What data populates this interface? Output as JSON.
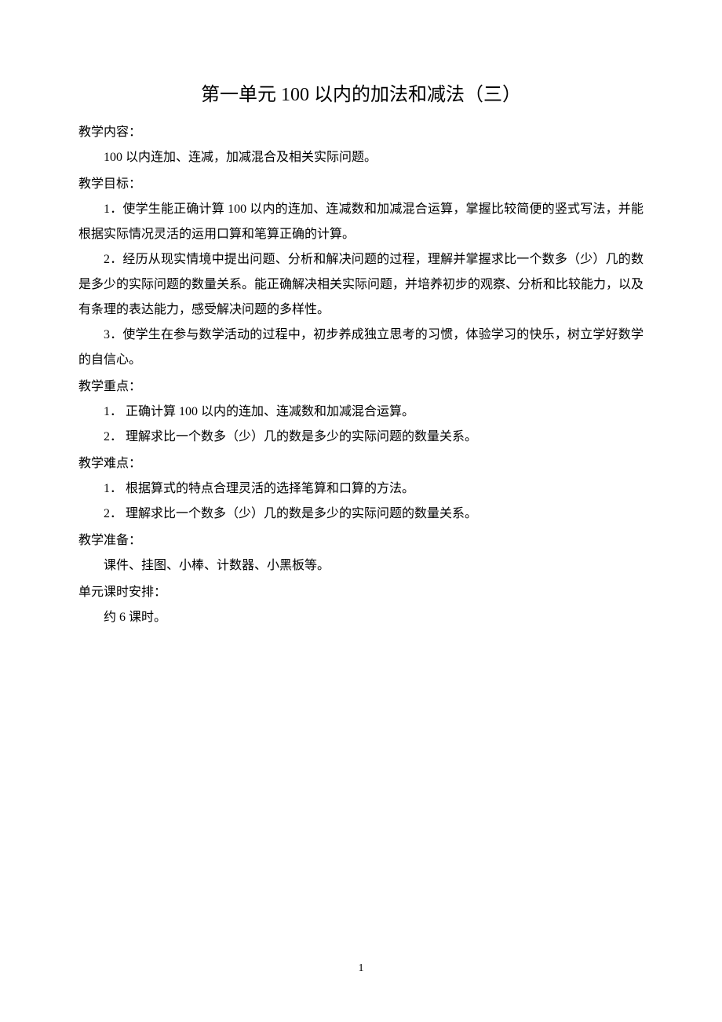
{
  "title": "第一单元  100 以内的加法和减法（三）",
  "sections": {
    "content": {
      "label": "教学内容：",
      "body": "100 以内连加、连减，加减混合及相关实际问题。"
    },
    "goals": {
      "label": "教学目标：",
      "items": [
        "1．使学生能正确计算 100 以内的连加、连减数和加减混合运算，掌握比较简便的竖式写法，并能根据实际情况灵活的运用口算和笔算正确的计算。",
        "2．经历从现实情境中提出问题、分析和解决问题的过程，理解并掌握求比一个数多（少）几的数是多少的实际问题的数量关系。能正确解决相关实际问题，并培养初步的观察、分析和比较能力，以及有条理的表达能力，感受解决问题的多样性。",
        "3．使学生在参与数学活动的过程中，初步养成独立思考的习惯，体验学习的快乐，树立学好数学的自信心。"
      ]
    },
    "keyPoints": {
      "label": "教学重点：",
      "items": [
        "1． 正确计算 100 以内的连加、连减数和加减混合运算。",
        "2． 理解求比一个数多（少）几的数是多少的实际问题的数量关系。"
      ]
    },
    "difficulties": {
      "label": "教学难点：",
      "items": [
        "1． 根据算式的特点合理灵活的选择笔算和口算的方法。",
        "2． 理解求比一个数多（少）几的数是多少的实际问题的数量关系。"
      ]
    },
    "preparation": {
      "label": "教学准备：",
      "body": "课件、挂图、小棒、计数器、小黑板等。"
    },
    "schedule": {
      "label": "单元课时安排：",
      "body": "约 6 课时。"
    }
  },
  "pageNumber": "1",
  "styles": {
    "pageWidth": 920,
    "pageHeight": 1302,
    "backgroundColor": "#ffffff",
    "textColor": "#000000",
    "titleFontSize": 24,
    "bodyFontSize": 16,
    "lineHeight": 2.0,
    "fontFamily": "SimSun"
  }
}
